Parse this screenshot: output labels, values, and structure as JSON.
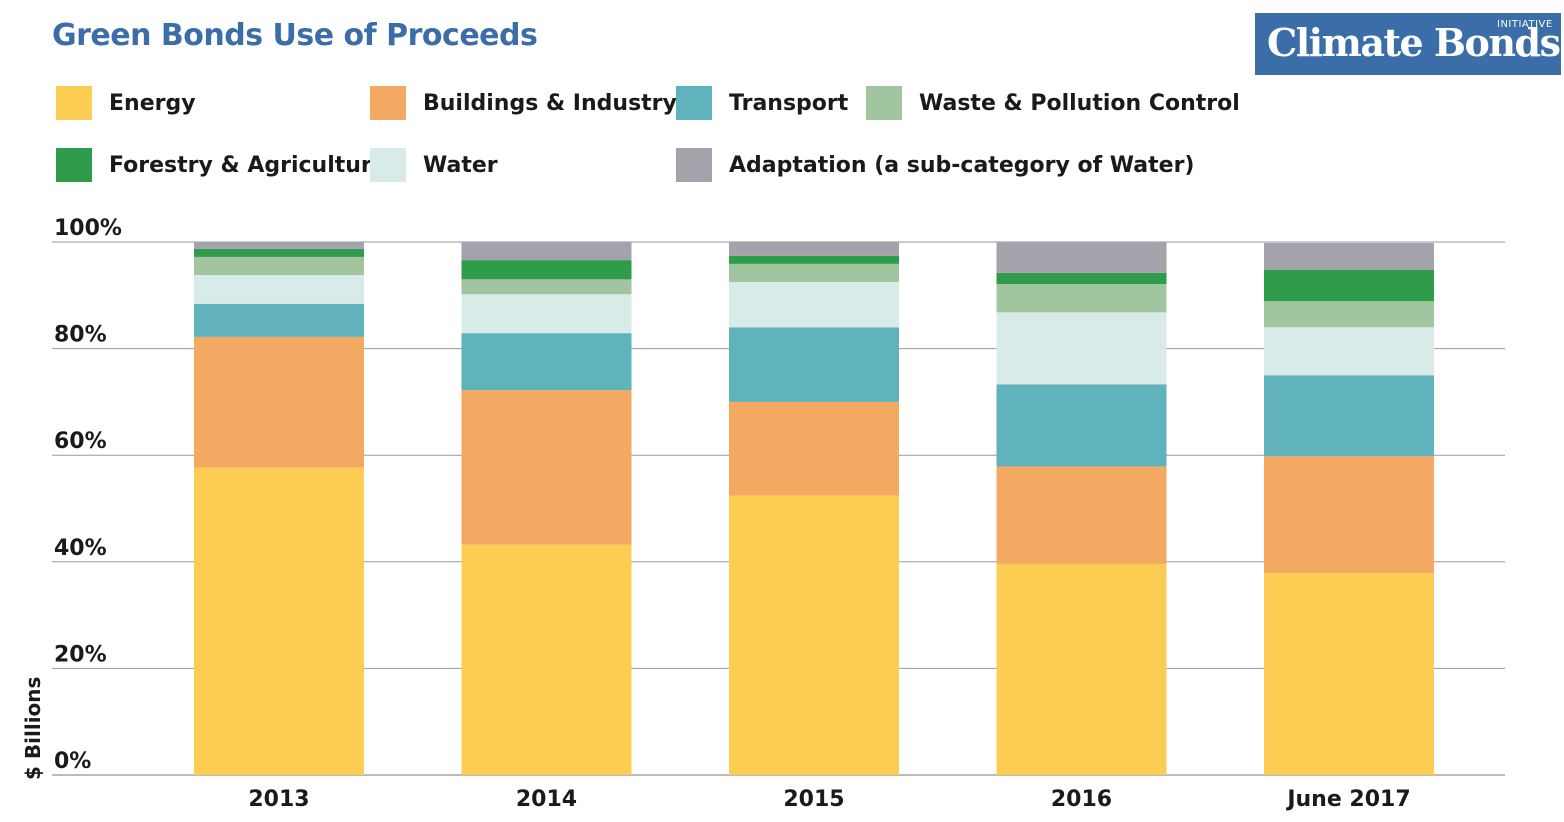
{
  "title": "Green Bonds Use of Proceeds",
  "logo": {
    "main": "Climate Bonds",
    "sub": "INITIATIVE"
  },
  "chart_data": {
    "type": "bar",
    "stacked": true,
    "title": "Green Bonds Use of Proceeds",
    "xlabel": "",
    "ylabel": "$ Billions",
    "ylim": [
      0,
      100
    ],
    "y_ticks": [
      "0%",
      "20%",
      "40%",
      "60%",
      "80%",
      "100%"
    ],
    "grid": true,
    "legend_position": "top",
    "categories": [
      "2013",
      "2014",
      "2015",
      "2016",
      "June 2017"
    ],
    "series": [
      {
        "name": "Energy",
        "color": "#fccd52",
        "values": [
          57.7,
          43.2,
          52.4,
          39.6,
          37.9
        ]
      },
      {
        "name": "Buildings & Industry",
        "color": "#f4a963",
        "values": [
          24.5,
          29.0,
          17.6,
          18.3,
          21.9
        ]
      },
      {
        "name": "Transport",
        "color": "#60b2bd",
        "values": [
          6.2,
          10.7,
          14.0,
          15.4,
          15.2
        ]
      },
      {
        "name": "Water",
        "color": "#d8ebe9",
        "values": [
          5.4,
          7.3,
          8.5,
          13.5,
          9.0
        ]
      },
      {
        "name": "Waste & Pollution Control",
        "color": "#a0c59f",
        "values": [
          3.4,
          2.8,
          3.4,
          5.3,
          4.9
        ]
      },
      {
        "name": "Forestry & Agriculture",
        "color": "#2e9c4a",
        "values": [
          1.5,
          3.6,
          1.5,
          2.1,
          5.9
        ]
      },
      {
        "name": "Adaptation (a sub-category of Water)",
        "color": "#a4a2aa",
        "values": [
          1.4,
          3.4,
          2.5,
          5.8,
          5.0
        ]
      }
    ]
  },
  "legend_order": [
    "Energy",
    "Buildings & Industry",
    "Transport",
    "Waste & Pollution Control",
    "Forestry & Agriculture",
    "Water",
    "Adaptation (a sub-category of Water)"
  ]
}
